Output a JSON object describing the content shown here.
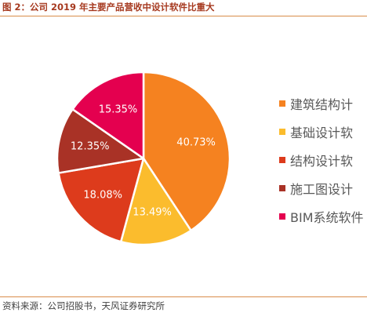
{
  "figure_title": "图 2：公司 2019 年主要产品营收中设计软件比重大",
  "source": "资料来源：公司招股书，天风证券研究所",
  "chart_data": {
    "type": "pie",
    "title": "",
    "slices": [
      {
        "label": "建筑结构设计软件",
        "value": 40.73,
        "display": "40.73%",
        "color": "#f58220"
      },
      {
        "label": "基础设计软件",
        "value": 13.49,
        "display": "13.49%",
        "color": "#fbbc2d"
      },
      {
        "label": "结构设计软件",
        "value": 18.08,
        "display": "18.08%",
        "color": "#dd3b1c"
      },
      {
        "label": "施工图设计软件",
        "value": 12.35,
        "display": "12.35%",
        "color": "#a93226"
      },
      {
        "label": "BIM系统软件",
        "value": 15.35,
        "display": "15.35%",
        "color": "#e4004f"
      }
    ],
    "legend_labels_visible": [
      "建筑结构计",
      "基础设计软",
      "结构设计软",
      "施工图设计",
      "BIM系统软件"
    ],
    "legend_position": "right"
  }
}
